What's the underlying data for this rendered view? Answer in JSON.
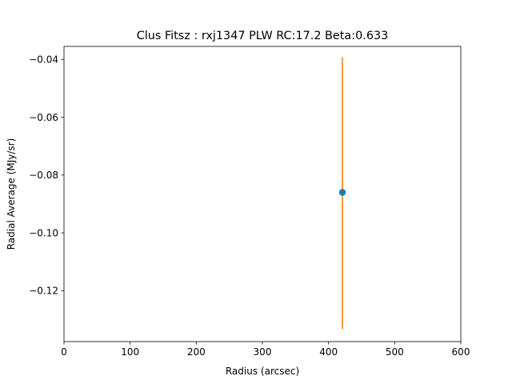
{
  "chart_data": {
    "type": "scatter",
    "title": "Clus Fitsz : rxj1347  PLW  RC:17.2  Beta:0.633",
    "xlabel": "Radius (arcsec)",
    "ylabel": "Radial Average (MJy/sr)",
    "xlim": [
      0,
      600
    ],
    "ylim": [
      -0.1376,
      -0.0355
    ],
    "xticks": [
      0,
      100,
      200,
      300,
      400,
      500,
      600
    ],
    "xtick_labels": [
      "0",
      "100",
      "200",
      "300",
      "400",
      "500",
      "600"
    ],
    "yticks": [
      -0.04,
      -0.06,
      -0.08,
      -0.1,
      -0.12
    ],
    "ytick_labels": [
      "−0.04",
      "−0.06",
      "−0.08",
      "−0.10",
      "−0.12"
    ],
    "grid": false,
    "series": [
      {
        "x": [
          421
        ],
        "y": [
          -0.086
        ],
        "yerr_low": [
          -0.1333
        ],
        "yerr_high": [
          -0.0393
        ],
        "marker_color": "#1f77b4",
        "errorbar_color": "#ff7f0e"
      }
    ]
  }
}
